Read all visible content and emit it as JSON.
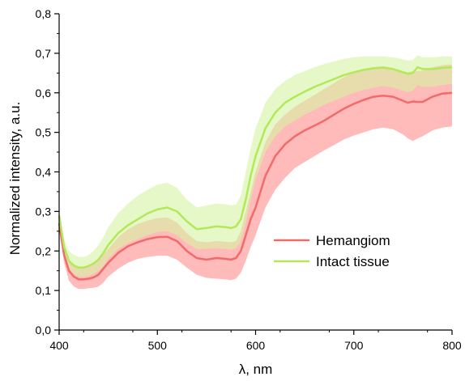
{
  "chart_data": {
    "type": "line",
    "xlabel": "λ, nm",
    "ylabel": "Normalized intensity, a.u.",
    "xlim": [
      400,
      800
    ],
    "ylim": [
      0.0,
      0.8
    ],
    "x_ticks": [
      400,
      500,
      600,
      700,
      800
    ],
    "x_tick_labels": [
      "400",
      "500",
      "600",
      "700",
      "800"
    ],
    "y_ticks": [
      0.0,
      0.1,
      0.2,
      0.3,
      0.4,
      0.5,
      0.6,
      0.7,
      0.8
    ],
    "y_tick_labels": [
      "0,0",
      "0,1",
      "0,2",
      "0,3",
      "0,4",
      "0,5",
      "0,6",
      "0,7",
      "0,8"
    ],
    "grid": false,
    "legend_position": "center-right",
    "x": [
      400,
      405,
      410,
      415,
      420,
      425,
      430,
      435,
      440,
      445,
      450,
      460,
      470,
      480,
      490,
      500,
      510,
      520,
      530,
      540,
      550,
      560,
      570,
      575,
      580,
      585,
      590,
      595,
      600,
      610,
      620,
      630,
      640,
      650,
      660,
      670,
      680,
      690,
      700,
      710,
      720,
      730,
      740,
      750,
      755,
      760,
      765,
      770,
      780,
      790,
      800
    ],
    "series": [
      {
        "name": "Hemangiom",
        "color": "#f36a6a",
        "band_color": "#ffb3b3",
        "values": [
          0.27,
          0.19,
          0.15,
          0.135,
          0.128,
          0.128,
          0.13,
          0.133,
          0.14,
          0.155,
          0.17,
          0.195,
          0.212,
          0.222,
          0.23,
          0.235,
          0.236,
          0.225,
          0.2,
          0.182,
          0.178,
          0.182,
          0.18,
          0.178,
          0.182,
          0.2,
          0.24,
          0.28,
          0.31,
          0.39,
          0.44,
          0.47,
          0.49,
          0.505,
          0.517,
          0.53,
          0.545,
          0.56,
          0.572,
          0.582,
          0.59,
          0.593,
          0.59,
          0.58,
          0.575,
          0.578,
          0.577,
          0.577,
          0.59,
          0.598,
          0.6
        ],
        "upper": [
          0.28,
          0.21,
          0.175,
          0.163,
          0.158,
          0.16,
          0.163,
          0.167,
          0.175,
          0.19,
          0.205,
          0.235,
          0.255,
          0.268,
          0.277,
          0.283,
          0.285,
          0.272,
          0.245,
          0.225,
          0.222,
          0.225,
          0.223,
          0.222,
          0.225,
          0.25,
          0.3,
          0.35,
          0.4,
          0.475,
          0.52,
          0.545,
          0.565,
          0.58,
          0.595,
          0.61,
          0.625,
          0.64,
          0.652,
          0.66,
          0.665,
          0.667,
          0.663,
          0.655,
          0.652,
          0.655,
          0.655,
          0.656,
          0.665,
          0.67,
          0.672
        ],
        "lower": [
          0.26,
          0.17,
          0.125,
          0.11,
          0.104,
          0.104,
          0.106,
          0.107,
          0.11,
          0.12,
          0.135,
          0.155,
          0.17,
          0.18,
          0.185,
          0.188,
          0.188,
          0.178,
          0.158,
          0.14,
          0.132,
          0.13,
          0.128,
          0.126,
          0.13,
          0.145,
          0.175,
          0.21,
          0.24,
          0.31,
          0.355,
          0.385,
          0.41,
          0.425,
          0.44,
          0.455,
          0.468,
          0.482,
          0.492,
          0.5,
          0.508,
          0.512,
          0.508,
          0.495,
          0.485,
          0.478,
          0.485,
          0.49,
          0.505,
          0.512,
          0.515
        ]
      },
      {
        "name": "Intact tissue",
        "color": "#b3e85a",
        "band_color": "#d7f3a4",
        "values": [
          0.29,
          0.21,
          0.175,
          0.163,
          0.158,
          0.158,
          0.162,
          0.168,
          0.178,
          0.195,
          0.215,
          0.245,
          0.265,
          0.28,
          0.295,
          0.305,
          0.31,
          0.3,
          0.275,
          0.255,
          0.258,
          0.262,
          0.26,
          0.258,
          0.262,
          0.28,
          0.33,
          0.39,
          0.44,
          0.51,
          0.55,
          0.575,
          0.59,
          0.603,
          0.615,
          0.625,
          0.635,
          0.645,
          0.652,
          0.658,
          0.662,
          0.664,
          0.66,
          0.652,
          0.648,
          0.65,
          0.665,
          0.66,
          0.66,
          0.663,
          0.665
        ],
        "upper": [
          0.3,
          0.23,
          0.2,
          0.19,
          0.185,
          0.185,
          0.19,
          0.2,
          0.215,
          0.235,
          0.26,
          0.295,
          0.32,
          0.34,
          0.355,
          0.368,
          0.373,
          0.36,
          0.33,
          0.31,
          0.315,
          0.32,
          0.318,
          0.315,
          0.318,
          0.34,
          0.4,
          0.46,
          0.51,
          0.575,
          0.61,
          0.63,
          0.645,
          0.655,
          0.665,
          0.673,
          0.68,
          0.686,
          0.69,
          0.692,
          0.692,
          0.692,
          0.69,
          0.685,
          0.682,
          0.683,
          0.695,
          0.69,
          0.69,
          0.692,
          0.692
        ],
        "lower": [
          0.28,
          0.195,
          0.155,
          0.142,
          0.135,
          0.134,
          0.137,
          0.142,
          0.15,
          0.162,
          0.18,
          0.205,
          0.22,
          0.23,
          0.24,
          0.248,
          0.25,
          0.24,
          0.22,
          0.205,
          0.205,
          0.207,
          0.205,
          0.203,
          0.207,
          0.225,
          0.27,
          0.33,
          0.38,
          0.45,
          0.49,
          0.515,
          0.53,
          0.545,
          0.557,
          0.57,
          0.58,
          0.59,
          0.6,
          0.607,
          0.613,
          0.617,
          0.613,
          0.605,
          0.602,
          0.605,
          0.62,
          0.615,
          0.615,
          0.62,
          0.622
        ]
      }
    ]
  }
}
